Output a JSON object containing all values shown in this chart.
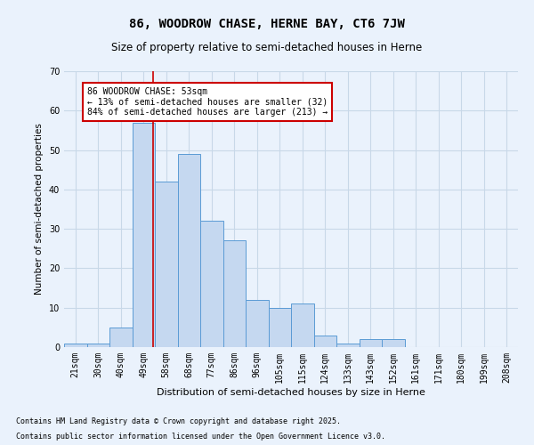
{
  "title1": "86, WOODROW CHASE, HERNE BAY, CT6 7JW",
  "title2": "Size of property relative to semi-detached houses in Herne",
  "xlabel": "Distribution of semi-detached houses by size in Herne",
  "ylabel": "Number of semi-detached properties",
  "footer1": "Contains HM Land Registry data © Crown copyright and database right 2025.",
  "footer2": "Contains public sector information licensed under the Open Government Licence v3.0.",
  "categories": [
    "21sqm",
    "30sqm",
    "40sqm",
    "49sqm",
    "58sqm",
    "68sqm",
    "77sqm",
    "86sqm",
    "96sqm",
    "105sqm",
    "115sqm",
    "124sqm",
    "133sqm",
    "143sqm",
    "152sqm",
    "161sqm",
    "171sqm",
    "180sqm",
    "199sqm",
    "208sqm"
  ],
  "values": [
    1,
    1,
    5,
    57,
    42,
    49,
    32,
    27,
    12,
    10,
    11,
    3,
    1,
    2,
    2,
    0,
    0,
    0,
    0,
    0
  ],
  "bar_color": "#c5d8f0",
  "bar_edge_color": "#5b9bd5",
  "grid_color": "#c8d8e8",
  "bg_color": "#eaf2fc",
  "red_line_x": 3.44,
  "annotation_text": "86 WOODROW CHASE: 53sqm\n← 13% of semi-detached houses are smaller (32)\n84% of semi-detached houses are larger (213) →",
  "annotation_box_color": "#ffffff",
  "annotation_border_color": "#cc0000",
  "ylim": [
    0,
    70
  ],
  "yticks": [
    0,
    10,
    20,
    30,
    40,
    50,
    60,
    70
  ],
  "title1_fontsize": 10,
  "title2_fontsize": 8.5,
  "xlabel_fontsize": 8,
  "ylabel_fontsize": 7.5,
  "tick_fontsize": 7,
  "annotation_fontsize": 7,
  "footer_fontsize": 6
}
